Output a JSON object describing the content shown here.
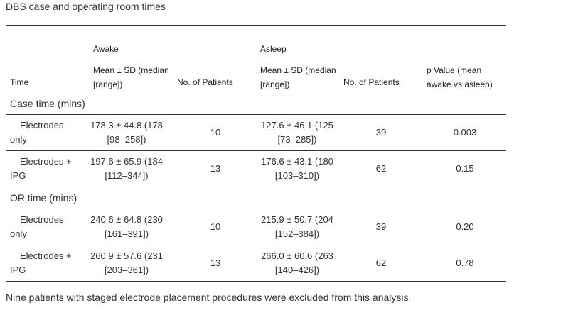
{
  "caption": "DBS case and operating room times",
  "header": {
    "awake_group": "Awake",
    "asleep_group": "Asleep",
    "col_time": "Time",
    "col_awake_mean_l1": "Mean ± SD (median",
    "col_awake_mean_l2": "[range])",
    "col_awake_n": "No. of Patients",
    "col_asleep_mean_l1": "Mean ± SD (median",
    "col_asleep_mean_l2": "[range])",
    "col_asleep_n": "No. of Patients",
    "col_p_l1": "p Value (mean",
    "col_p_l2": "awake vs asleep)"
  },
  "sections": [
    {
      "title": "Case time (mins)",
      "rows": [
        {
          "label_l1": "Electrodes",
          "label_l2": "only",
          "awake_l1": "178.3 ± 44.8 (178",
          "awake_l2": "[98–258])",
          "awake_n": "10",
          "asleep_l1": "127.6 ± 46.1 (125",
          "asleep_l2": "[73–285])",
          "asleep_n": "39",
          "p": "0.003"
        },
        {
          "label_l1": "Electrodes +",
          "label_l2": "IPG",
          "awake_l1": "197.6 ± 65.9 (184",
          "awake_l2": "[112–344])",
          "awake_n": "13",
          "asleep_l1": "176.6 ± 43.1 (180",
          "asleep_l2": "[103–310])",
          "asleep_n": "62",
          "p": "0.15"
        }
      ]
    },
    {
      "title": "OR time (mins)",
      "rows": [
        {
          "label_l1": "Electrodes",
          "label_l2": "only",
          "awake_l1": "240.6 ± 64.8 (230",
          "awake_l2": "[161–391])",
          "awake_n": "10",
          "asleep_l1": "215.9 ± 50.7 (204",
          "asleep_l2": "[152–384])",
          "asleep_n": "39",
          "p": "0.20"
        },
        {
          "label_l1": "Electrodes +",
          "label_l2": "IPG",
          "awake_l1": "260.9 ± 57.6 (231",
          "awake_l2": "[203–361])",
          "awake_n": "13",
          "asleep_l1": "266.0 ± 60.6 (263",
          "asleep_l2": "[140–426])",
          "asleep_n": "62",
          "p": "0.78"
        }
      ]
    }
  ],
  "footnote": "Nine patients with staged electrode placement procedures were excluded from this analysis."
}
